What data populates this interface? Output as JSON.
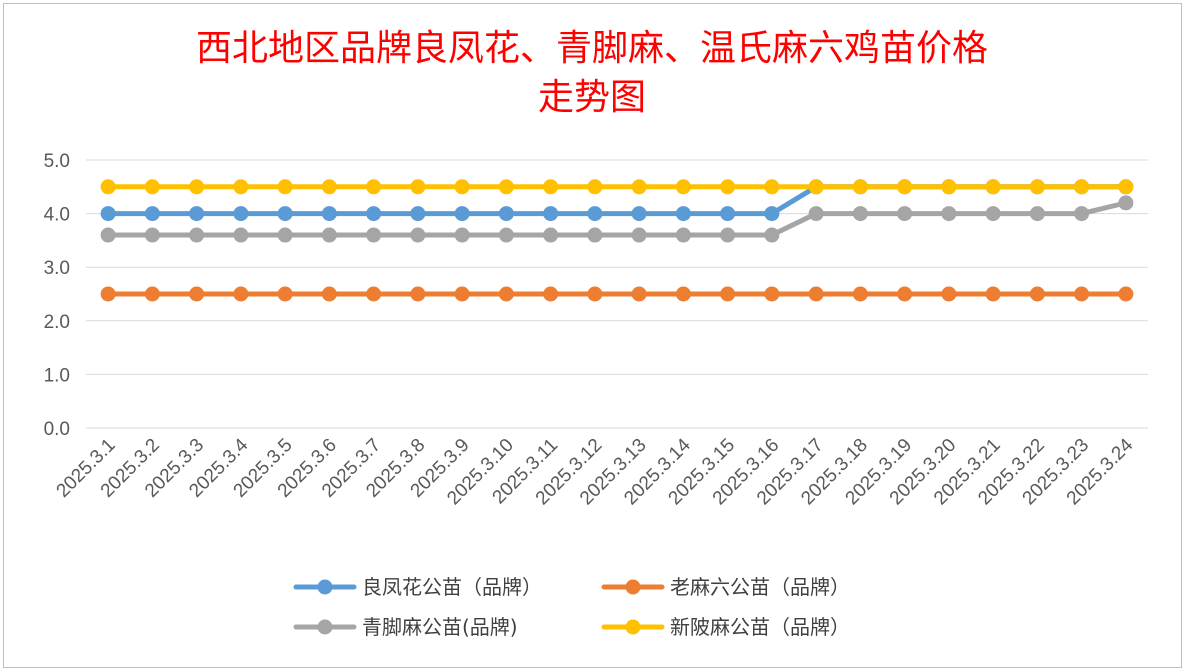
{
  "chart_data": {
    "type": "line",
    "title": [
      "西北地区品牌良凤花、青脚麻、温氏麻六鸡苗价格",
      "走势图"
    ],
    "xlabel": "",
    "ylabel": "",
    "ylim": [
      0,
      5
    ],
    "yticks": [
      "0.0",
      "1.0",
      "2.0",
      "3.0",
      "4.0",
      "5.0"
    ],
    "grid": true,
    "legend_position": "bottom",
    "categories": [
      "2025.3.1",
      "2025.3.2",
      "2025.3.3",
      "2025.3.4",
      "2025.3.5",
      "2025.3.6",
      "2025.3.7",
      "2025.3.8",
      "2025.3.9",
      "2025.3.10",
      "2025.3.11",
      "2025.3.12",
      "2025.3.13",
      "2025.3.14",
      "2025.3.15",
      "2025.3.16",
      "2025.3.17",
      "2025.3.18",
      "2025.3.19",
      "2025.3.20",
      "2025.3.21",
      "2025.3.22",
      "2025.3.23",
      "2025.3.24"
    ],
    "series": [
      {
        "name": "良凤花公苗（品牌）",
        "color": "#5b9bd5",
        "values": [
          4.0,
          4.0,
          4.0,
          4.0,
          4.0,
          4.0,
          4.0,
          4.0,
          4.0,
          4.0,
          4.0,
          4.0,
          4.0,
          4.0,
          4.0,
          4.0,
          4.5,
          4.5,
          4.5,
          4.5,
          4.5,
          4.5,
          4.5,
          4.5
        ]
      },
      {
        "name": "老麻六公苗（品牌）",
        "color": "#ed7d31",
        "values": [
          2.5,
          2.5,
          2.5,
          2.5,
          2.5,
          2.5,
          2.5,
          2.5,
          2.5,
          2.5,
          2.5,
          2.5,
          2.5,
          2.5,
          2.5,
          2.5,
          2.5,
          2.5,
          2.5,
          2.5,
          2.5,
          2.5,
          2.5,
          2.5
        ]
      },
      {
        "name": "青脚麻公苗(品牌)",
        "color": "#a5a5a5",
        "values": [
          3.6,
          3.6,
          3.6,
          3.6,
          3.6,
          3.6,
          3.6,
          3.6,
          3.6,
          3.6,
          3.6,
          3.6,
          3.6,
          3.6,
          3.6,
          3.6,
          4.0,
          4.0,
          4.0,
          4.0,
          4.0,
          4.0,
          4.0,
          4.2
        ]
      },
      {
        "name": "新陂麻公苗（品牌）",
        "color": "#ffc000",
        "values": [
          4.5,
          4.5,
          4.5,
          4.5,
          4.5,
          4.5,
          4.5,
          4.5,
          4.5,
          4.5,
          4.5,
          4.5,
          4.5,
          4.5,
          4.5,
          4.5,
          4.5,
          4.5,
          4.5,
          4.5,
          4.5,
          4.5,
          4.5,
          4.5
        ]
      }
    ]
  }
}
